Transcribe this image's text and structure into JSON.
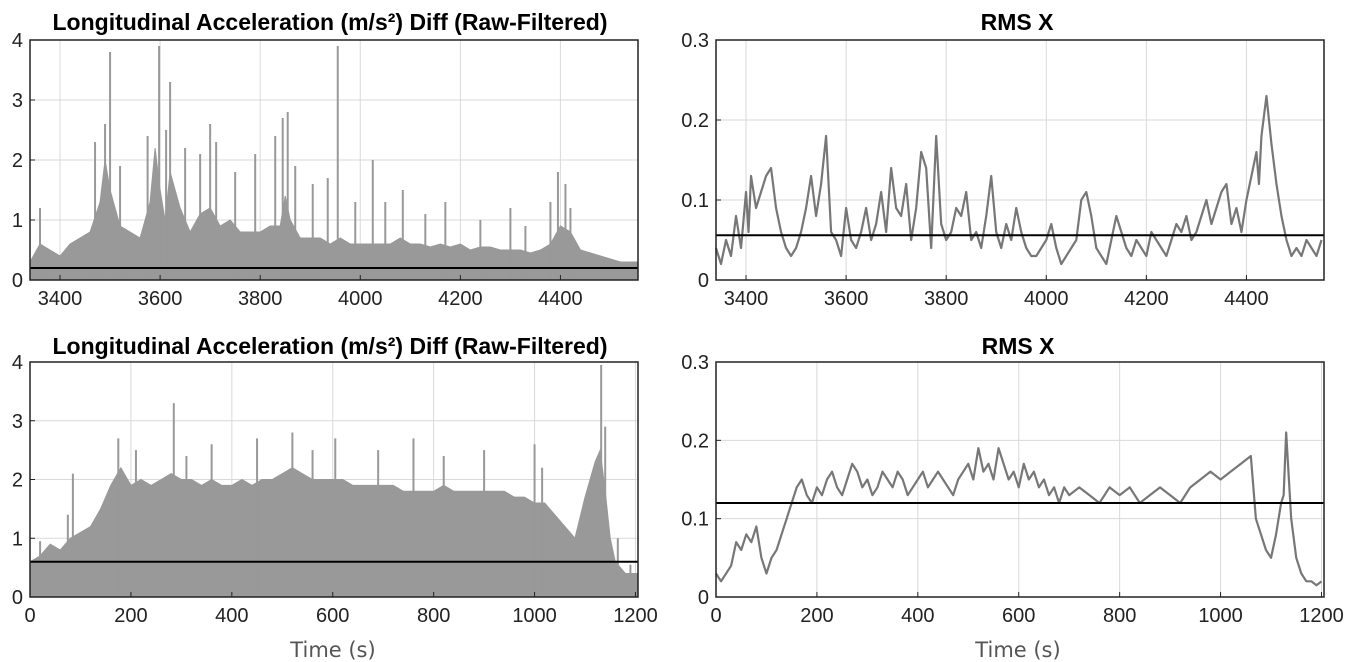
{
  "colors": {
    "signal": "#999999",
    "rms_line": "#777777",
    "threshold": "#000000",
    "grid": "#d9d9d9",
    "axes": "#222222"
  },
  "chart_data": [
    {
      "id": "tl",
      "type": "area",
      "title": "Longitudinal Acceleration (m/s²) Diff (Raw-Filtered)",
      "xlabel": "",
      "ylabel": "",
      "xlim": [
        3340,
        4555
      ],
      "ylim": [
        0,
        4
      ],
      "xticks": [
        3400,
        3600,
        3800,
        4000,
        4200,
        4400
      ],
      "yticks": [
        0,
        1,
        2,
        3,
        4
      ],
      "grid": true,
      "threshold": 0.2,
      "series": [
        {
          "x": [
            3340,
            3360,
            3380,
            3400,
            3420,
            3440,
            3460,
            3480,
            3490,
            3500,
            3510,
            3520,
            3540,
            3560,
            3580,
            3590,
            3600,
            3610,
            3620,
            3640,
            3660,
            3680,
            3700,
            3720,
            3740,
            3760,
            3780,
            3800,
            3820,
            3840,
            3850,
            3860,
            3880,
            3900,
            3920,
            3940,
            3960,
            3980,
            4000,
            4020,
            4040,
            4060,
            4080,
            4100,
            4120,
            4140,
            4160,
            4180,
            4200,
            4220,
            4240,
            4260,
            4280,
            4300,
            4320,
            4340,
            4360,
            4380,
            4400,
            4420,
            4440,
            4460,
            4480,
            4500,
            4520,
            4540,
            4555
          ],
          "y": [
            0.3,
            0.6,
            0.5,
            0.4,
            0.6,
            0.7,
            0.8,
            1.3,
            2.0,
            1.5,
            1.2,
            0.9,
            0.8,
            0.7,
            1.3,
            2.2,
            1.5,
            1.0,
            1.8,
            1.2,
            0.8,
            1.1,
            1.2,
            0.9,
            1.0,
            0.8,
            0.8,
            0.8,
            0.9,
            0.9,
            1.4,
            1.0,
            0.7,
            0.7,
            0.7,
            0.6,
            0.7,
            0.6,
            0.6,
            0.6,
            0.6,
            0.6,
            0.7,
            0.6,
            0.6,
            0.55,
            0.6,
            0.55,
            0.6,
            0.5,
            0.55,
            0.55,
            0.5,
            0.5,
            0.5,
            0.45,
            0.5,
            0.6,
            0.9,
            0.8,
            0.5,
            0.45,
            0.4,
            0.35,
            0.3,
            0.3,
            0.3
          ]
        }
      ],
      "spikes": [
        [
          3360,
          1.2
        ],
        [
          3470,
          2.3
        ],
        [
          3490,
          2.6
        ],
        [
          3500,
          3.8
        ],
        [
          3520,
          1.9
        ],
        [
          3575,
          2.4
        ],
        [
          3598,
          3.9
        ],
        [
          3612,
          2.5
        ],
        [
          3620,
          3.3
        ],
        [
          3650,
          2.2
        ],
        [
          3680,
          2.1
        ],
        [
          3700,
          2.6
        ],
        [
          3712,
          2.3
        ],
        [
          3750,
          1.8
        ],
        [
          3790,
          2.1
        ],
        [
          3830,
          2.4
        ],
        [
          3845,
          2.7
        ],
        [
          3855,
          2.8
        ],
        [
          3870,
          1.9
        ],
        [
          3905,
          1.6
        ],
        [
          3935,
          1.7
        ],
        [
          3955,
          3.9
        ],
        [
          3990,
          1.3
        ],
        [
          4025,
          2.0
        ],
        [
          4050,
          1.3
        ],
        [
          4085,
          1.5
        ],
        [
          4130,
          1.1
        ],
        [
          4170,
          1.3
        ],
        [
          4240,
          1.0
        ],
        [
          4300,
          1.2
        ],
        [
          4330,
          0.9
        ],
        [
          4380,
          1.3
        ],
        [
          4395,
          1.8
        ],
        [
          4410,
          1.6
        ],
        [
          4420,
          1.2
        ]
      ]
    },
    {
      "id": "tr",
      "type": "line",
      "title": "RMS X",
      "xlabel": "",
      "ylabel": "",
      "xlim": [
        3340,
        4555
      ],
      "ylim": [
        0,
        0.3
      ],
      "xticks": [
        3400,
        3600,
        3800,
        4000,
        4200,
        4400
      ],
      "yticks": [
        0,
        0.1,
        0.2,
        0.3
      ],
      "grid": true,
      "threshold": 0.056,
      "series": [
        {
          "x": [
            3340,
            3350,
            3360,
            3370,
            3380,
            3390,
            3400,
            3405,
            3410,
            3420,
            3430,
            3440,
            3450,
            3460,
            3470,
            3480,
            3490,
            3500,
            3510,
            3520,
            3530,
            3540,
            3550,
            3560,
            3570,
            3580,
            3590,
            3600,
            3610,
            3620,
            3630,
            3640,
            3650,
            3660,
            3670,
            3680,
            3690,
            3700,
            3710,
            3720,
            3730,
            3740,
            3750,
            3760,
            3770,
            3780,
            3790,
            3800,
            3810,
            3820,
            3830,
            3840,
            3850,
            3860,
            3870,
            3880,
            3890,
            3900,
            3910,
            3920,
            3930,
            3940,
            3950,
            3960,
            3970,
            3980,
            3990,
            4000,
            4010,
            4020,
            4030,
            4040,
            4050,
            4060,
            4070,
            4080,
            4090,
            4100,
            4110,
            4120,
            4130,
            4140,
            4150,
            4160,
            4170,
            4180,
            4190,
            4200,
            4210,
            4220,
            4230,
            4240,
            4250,
            4260,
            4270,
            4280,
            4290,
            4300,
            4310,
            4320,
            4330,
            4340,
            4350,
            4360,
            4370,
            4380,
            4390,
            4400,
            4410,
            4420,
            4425,
            4430,
            4440,
            4450,
            4460,
            4470,
            4480,
            4490,
            4500,
            4510,
            4520,
            4530,
            4540,
            4550
          ],
          "y": [
            0.04,
            0.02,
            0.05,
            0.03,
            0.08,
            0.04,
            0.11,
            0.06,
            0.13,
            0.09,
            0.11,
            0.13,
            0.14,
            0.09,
            0.06,
            0.04,
            0.03,
            0.04,
            0.06,
            0.09,
            0.13,
            0.08,
            0.12,
            0.18,
            0.06,
            0.05,
            0.03,
            0.09,
            0.05,
            0.04,
            0.06,
            0.09,
            0.05,
            0.07,
            0.11,
            0.06,
            0.14,
            0.09,
            0.08,
            0.12,
            0.05,
            0.09,
            0.16,
            0.14,
            0.04,
            0.18,
            0.07,
            0.05,
            0.06,
            0.09,
            0.08,
            0.11,
            0.05,
            0.06,
            0.04,
            0.08,
            0.13,
            0.06,
            0.04,
            0.07,
            0.05,
            0.09,
            0.06,
            0.04,
            0.03,
            0.03,
            0.04,
            0.05,
            0.07,
            0.04,
            0.02,
            0.03,
            0.04,
            0.05,
            0.1,
            0.11,
            0.08,
            0.04,
            0.03,
            0.02,
            0.05,
            0.08,
            0.06,
            0.04,
            0.03,
            0.05,
            0.04,
            0.03,
            0.06,
            0.05,
            0.04,
            0.03,
            0.05,
            0.07,
            0.06,
            0.08,
            0.05,
            0.06,
            0.08,
            0.1,
            0.07,
            0.09,
            0.11,
            0.12,
            0.07,
            0.09,
            0.06,
            0.1,
            0.13,
            0.16,
            0.12,
            0.18,
            0.23,
            0.17,
            0.12,
            0.08,
            0.05,
            0.03,
            0.04,
            0.03,
            0.05,
            0.04,
            0.03,
            0.05
          ]
        }
      ]
    },
    {
      "id": "bl",
      "type": "area",
      "title": "Longitudinal Acceleration (m/s²) Diff (Raw-Filtered)",
      "xlabel": "Time (s)",
      "ylabel": "",
      "xlim": [
        0,
        1205
      ],
      "ylim": [
        0,
        4
      ],
      "xticks": [
        0,
        200,
        400,
        600,
        800,
        1000,
        1200
      ],
      "yticks": [
        0,
        1,
        2,
        3,
        4
      ],
      "grid": true,
      "threshold": 0.6,
      "series": [
        {
          "x": [
            0,
            20,
            40,
            60,
            80,
            100,
            120,
            140,
            160,
            180,
            200,
            220,
            240,
            260,
            280,
            300,
            320,
            340,
            360,
            380,
            400,
            420,
            440,
            460,
            480,
            500,
            520,
            540,
            560,
            580,
            600,
            620,
            640,
            660,
            680,
            700,
            720,
            740,
            760,
            780,
            800,
            820,
            840,
            860,
            880,
            900,
            920,
            940,
            960,
            980,
            1000,
            1020,
            1040,
            1060,
            1080,
            1100,
            1120,
            1130,
            1140,
            1150,
            1160,
            1170,
            1180,
            1190,
            1205
          ],
          "y": [
            0.6,
            0.7,
            0.9,
            0.8,
            1.0,
            1.1,
            1.2,
            1.5,
            1.9,
            2.2,
            1.9,
            2.0,
            1.9,
            2.0,
            2.1,
            2.0,
            2.0,
            1.9,
            2.0,
            1.9,
            1.9,
            2.0,
            1.9,
            2.0,
            2.0,
            2.1,
            2.2,
            2.1,
            2.0,
            2.0,
            2.0,
            2.0,
            1.9,
            1.9,
            1.9,
            1.9,
            1.9,
            1.8,
            1.8,
            1.8,
            1.8,
            1.9,
            1.8,
            1.8,
            1.8,
            1.8,
            1.8,
            1.8,
            1.7,
            1.7,
            1.6,
            1.6,
            1.4,
            1.2,
            1.0,
            1.7,
            2.3,
            2.5,
            1.8,
            1.0,
            0.6,
            0.5,
            0.4,
            0.4,
            0.4
          ]
        }
      ],
      "spikes": [
        [
          20,
          0.95
        ],
        [
          75,
          1.4
        ],
        [
          85,
          2.1
        ],
        [
          175,
          2.7
        ],
        [
          210,
          2.5
        ],
        [
          285,
          3.3
        ],
        [
          310,
          2.4
        ],
        [
          360,
          2.6
        ],
        [
          450,
          2.7
        ],
        [
          520,
          2.8
        ],
        [
          560,
          2.5
        ],
        [
          605,
          2.7
        ],
        [
          690,
          2.5
        ],
        [
          760,
          2.7
        ],
        [
          820,
          2.4
        ],
        [
          900,
          2.5
        ],
        [
          1000,
          2.6
        ],
        [
          1015,
          2.2
        ],
        [
          1132,
          3.95
        ],
        [
          1140,
          2.9
        ],
        [
          1165,
          1.0
        ],
        [
          1190,
          0.55
        ]
      ]
    },
    {
      "id": "br",
      "type": "line",
      "title": "RMS X",
      "xlabel": "Time (s)",
      "ylabel": "",
      "xlim": [
        0,
        1205
      ],
      "ylim": [
        0,
        0.3
      ],
      "xticks": [
        0,
        200,
        400,
        600,
        800,
        1000,
        1200
      ],
      "yticks": [
        0,
        0.1,
        0.2,
        0.3
      ],
      "grid": true,
      "threshold": 0.12,
      "series": [
        {
          "x": [
            0,
            10,
            20,
            30,
            40,
            50,
            60,
            70,
            80,
            90,
            100,
            110,
            120,
            130,
            140,
            150,
            160,
            170,
            180,
            190,
            200,
            210,
            220,
            230,
            240,
            250,
            260,
            270,
            280,
            290,
            300,
            310,
            320,
            330,
            340,
            350,
            360,
            370,
            380,
            390,
            400,
            410,
            420,
            430,
            440,
            450,
            460,
            470,
            480,
            490,
            500,
            510,
            520,
            530,
            540,
            550,
            560,
            570,
            580,
            590,
            600,
            610,
            620,
            630,
            640,
            650,
            660,
            670,
            680,
            690,
            700,
            720,
            740,
            760,
            780,
            800,
            820,
            840,
            860,
            880,
            900,
            920,
            940,
            960,
            980,
            1000,
            1020,
            1040,
            1060,
            1065,
            1070,
            1080,
            1090,
            1100,
            1110,
            1120,
            1125,
            1130,
            1140,
            1150,
            1160,
            1170,
            1180,
            1190,
            1200
          ],
          "y": [
            0.03,
            0.02,
            0.03,
            0.04,
            0.07,
            0.06,
            0.08,
            0.07,
            0.09,
            0.05,
            0.03,
            0.05,
            0.06,
            0.08,
            0.1,
            0.12,
            0.14,
            0.15,
            0.13,
            0.12,
            0.14,
            0.13,
            0.15,
            0.16,
            0.14,
            0.13,
            0.15,
            0.17,
            0.16,
            0.14,
            0.15,
            0.13,
            0.14,
            0.16,
            0.15,
            0.14,
            0.16,
            0.15,
            0.13,
            0.14,
            0.15,
            0.16,
            0.14,
            0.15,
            0.16,
            0.15,
            0.14,
            0.13,
            0.15,
            0.16,
            0.17,
            0.15,
            0.19,
            0.16,
            0.17,
            0.15,
            0.19,
            0.17,
            0.15,
            0.16,
            0.14,
            0.17,
            0.15,
            0.16,
            0.14,
            0.15,
            0.13,
            0.14,
            0.12,
            0.14,
            0.13,
            0.14,
            0.13,
            0.12,
            0.14,
            0.13,
            0.14,
            0.12,
            0.13,
            0.14,
            0.13,
            0.12,
            0.14,
            0.15,
            0.16,
            0.15,
            0.16,
            0.17,
            0.18,
            0.14,
            0.1,
            0.08,
            0.06,
            0.05,
            0.08,
            0.12,
            0.13,
            0.21,
            0.1,
            0.05,
            0.03,
            0.02,
            0.02,
            0.015,
            0.02
          ]
        }
      ]
    }
  ]
}
